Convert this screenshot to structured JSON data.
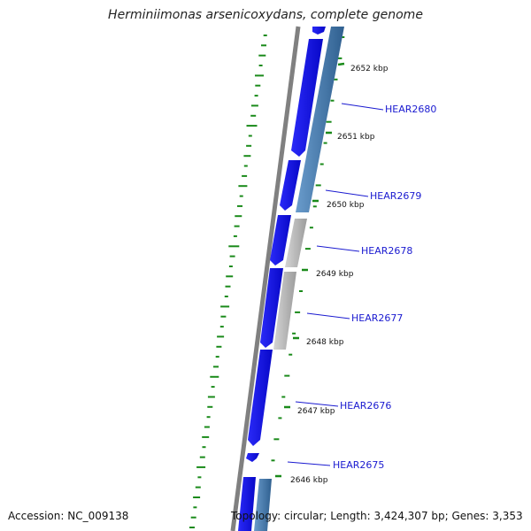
{
  "title": "Herminiimonas arsenicoxydans, complete genome",
  "footer": {
    "accession": "Accession: NC_009138",
    "topology": "Topology: circular; Length: 3,424,307 bp; Genes: 3,353"
  },
  "colors": {
    "backbone": "#808080",
    "forward_gene": "#1010f0",
    "reverse_gene": "#4a7fb5",
    "pseudo_gene": "#b8b8b8",
    "gc_marks": "#1a8a1a",
    "gene_label": "#1a1ad0"
  },
  "ticks": [
    "2652 kbp",
    "2651 kbp",
    "2650 kbp",
    "2649 kbp",
    "2648 kbp",
    "2647 kbp",
    "2646 kbp"
  ],
  "genes": [
    "HEAR2680",
    "HEAR2679",
    "HEAR2678",
    "HEAR2677",
    "HEAR2676",
    "HEAR2675"
  ]
}
